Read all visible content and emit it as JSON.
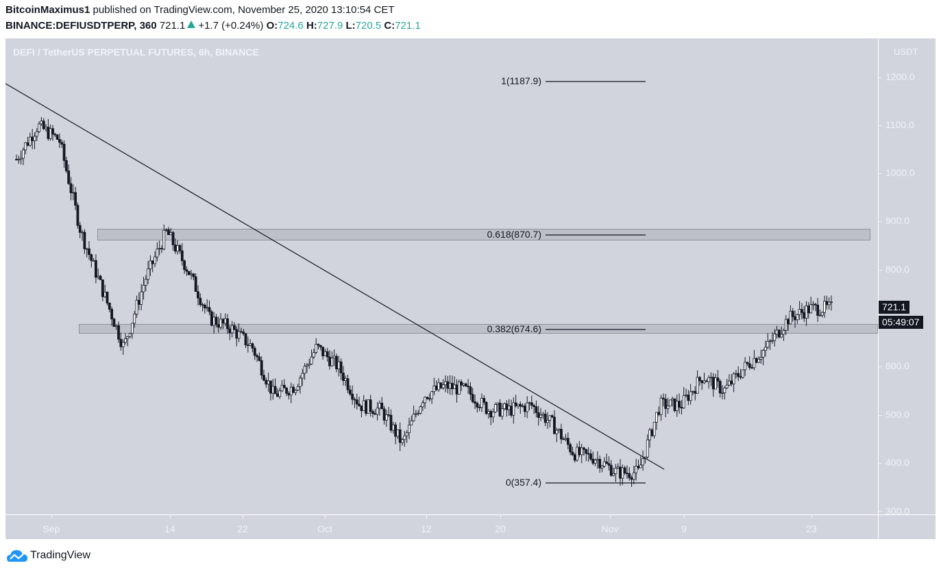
{
  "header": {
    "author": "BitcoinMaximus1",
    "published_text": "published on TradingView.com, November 25, 2020 13:10:54 CET",
    "symbol": "BINANCE:DEFIUSDTPERP, 360",
    "last": "721.1",
    "change": "+1.7 (+0.24%)",
    "o_label": "O:",
    "o": "724.6",
    "h_label": "H:",
    "h": "727.9",
    "l_label": "L:",
    "l": "720.5",
    "c_label": "C:",
    "c": "721.1"
  },
  "chart_title": "DEFI / TetherUS PERPETUAL FUTURES, 6h, BINANCE",
  "price_axis": {
    "unit": "USDT",
    "ticks": [
      "1200.0",
      "1100.0",
      "1000.0",
      "900.0",
      "800.0",
      "600.0",
      "500.0",
      "400.0",
      "300.0"
    ]
  },
  "time_axis": {
    "ticks": [
      "Sep",
      "14",
      "22",
      "Oct",
      "12",
      "20",
      "Nov",
      "9",
      "23"
    ]
  },
  "last_price_tag": "721.1",
  "countdown_tag": "05:49:07",
  "fib_levels": [
    {
      "label": "1(1187.9)"
    },
    {
      "label": "0.618(870.7)"
    },
    {
      "label": "0.382(674.6)"
    },
    {
      "label": "0(357.4)"
    }
  ],
  "footer": {
    "brand": "TradingView"
  },
  "colors": {
    "up": "#26a69a",
    "background": "#d1d4dc",
    "candle": "#131722"
  },
  "chart_data": {
    "type": "candlestick",
    "title": "DEFI / TetherUS PERPETUAL FUTURES, 6h, BINANCE",
    "xlabel": "",
    "ylabel": "USDT",
    "ylim": [
      290,
      1240
    ],
    "x_ticks": [
      "Sep",
      "14",
      "22",
      "Oct",
      "12",
      "20",
      "Nov",
      "9",
      "23"
    ],
    "grid": false,
    "approx_close_path": {
      "dates": [
        "Aug 29",
        "Sep 1",
        "Sep 2",
        "Sep 4",
        "Sep 5",
        "Sep 7",
        "Sep 10",
        "Sep 13",
        "Sep 14",
        "Sep 17",
        "Sep 20",
        "Sep 21",
        "Sep 22",
        "Sep 24",
        "Sep 27",
        "Sep 30",
        "Oct 2",
        "Oct 5",
        "Oct 8",
        "Oct 10",
        "Oct 12",
        "Oct 14",
        "Oct 17",
        "Oct 20",
        "Oct 23",
        "Oct 26",
        "Oct 29",
        "Nov 1",
        "Nov 3",
        "Nov 4",
        "Nov 5",
        "Nov 7",
        "Nov 9",
        "Nov 12",
        "Nov 15",
        "Nov 18",
        "Nov 21",
        "Nov 23",
        "Nov 25"
      ],
      "close": [
        1030,
        1100,
        1070,
        880,
        760,
        640,
        780,
        880,
        800,
        700,
        680,
        640,
        540,
        560,
        640,
        600,
        520,
        510,
        440,
        540,
        560,
        550,
        510,
        510,
        520,
        480,
        420,
        410,
        380,
        380,
        520,
        520,
        580,
        550,
        600,
        640,
        700,
        720,
        721
      ]
    },
    "annotations": {
      "fibonacci": [
        {
          "level": 1,
          "price": 1187.9
        },
        {
          "level": 0.618,
          "price": 870.7
        },
        {
          "level": 0.382,
          "price": 674.6
        },
        {
          "level": 0,
          "price": 357.4
        }
      ],
      "zones": [
        {
          "name": "resistance",
          "from": 860,
          "to": 885
        },
        {
          "name": "support",
          "from": 665,
          "to": 685
        }
      ],
      "trendline": {
        "from": {
          "date": "Aug 27",
          "price": 1180
        },
        "to": {
          "date": "Nov 5",
          "price": 388
        }
      }
    }
  }
}
